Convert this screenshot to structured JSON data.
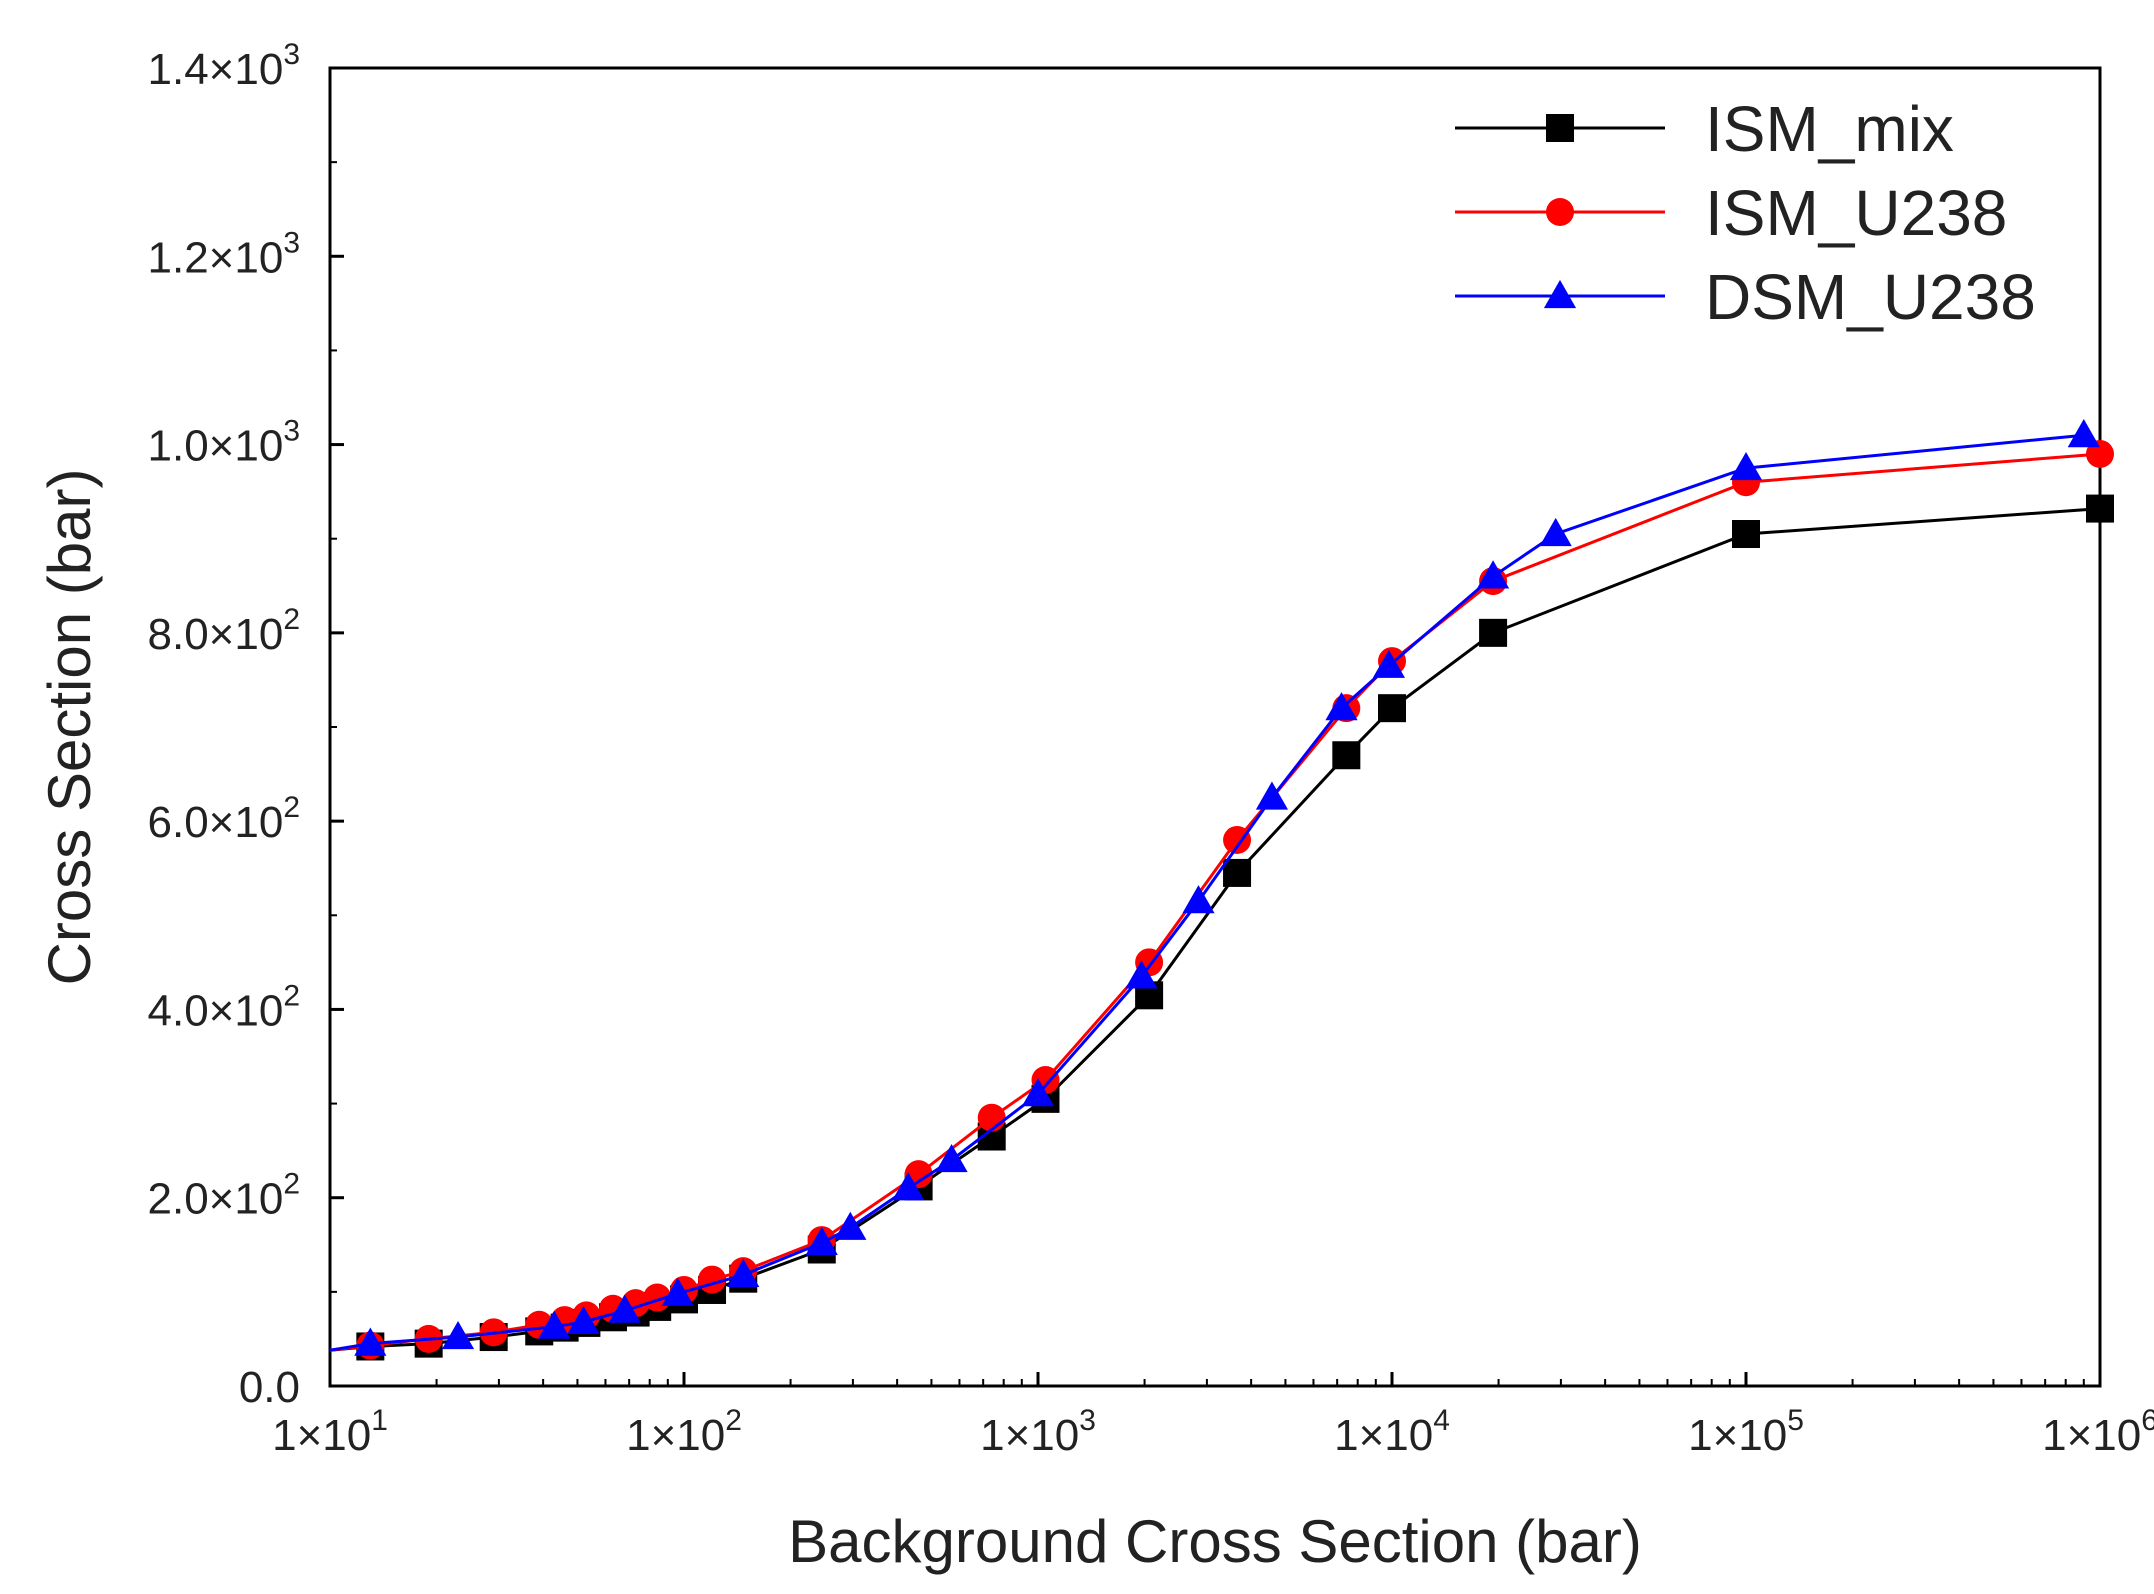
{
  "chart_data": {
    "type": "line",
    "title": "",
    "xlabel": "Background Cross Section (bar)",
    "ylabel": "Cross Section (bar)",
    "xscale": "log",
    "xlim": [
      10,
      1000000
    ],
    "ylim": [
      0,
      1400
    ],
    "grid": false,
    "legend_position": "top-right",
    "x_ticks": [
      {
        "value": 10,
        "mant": "1×10",
        "exp": "1"
      },
      {
        "value": 100,
        "mant": "1×10",
        "exp": "2"
      },
      {
        "value": 1000,
        "mant": "1×10",
        "exp": "3"
      },
      {
        "value": 10000,
        "mant": "1×10",
        "exp": "4"
      },
      {
        "value": 100000,
        "mant": "1×10",
        "exp": "5"
      },
      {
        "value": 1000000,
        "mant": "1×10",
        "exp": "6"
      }
    ],
    "y_ticks": [
      {
        "value": 0,
        "mant": "0.0",
        "exp": ""
      },
      {
        "value": 200,
        "mant": "2.0×10",
        "exp": "2"
      },
      {
        "value": 400,
        "mant": "4.0×10",
        "exp": "2"
      },
      {
        "value": 600,
        "mant": "6.0×10",
        "exp": "2"
      },
      {
        "value": 800,
        "mant": "8.0×10",
        "exp": "2"
      },
      {
        "value": 1000,
        "mant": "1.0×10",
        "exp": "3"
      },
      {
        "value": 1200,
        "mant": "1.2×10",
        "exp": "3"
      },
      {
        "value": 1400,
        "mant": "1.4×10",
        "exp": "3"
      }
    ],
    "series": [
      {
        "name": "ISM_mix",
        "color": "#000000",
        "marker": "square",
        "x": [
          10,
          13,
          19,
          29,
          39,
          46,
          53,
          63,
          73,
          84,
          100,
          120,
          147,
          245,
          460,
          740,
          1050,
          2060,
          3650,
          7430,
          10000,
          19300,
          100000,
          1000000
        ],
        "y": [
          38,
          42,
          45,
          52,
          58,
          62,
          67,
          73,
          78,
          84,
          92,
          102,
          114,
          145,
          212,
          265,
          305,
          415,
          545,
          670,
          720,
          800,
          905,
          932
        ]
      },
      {
        "name": "ISM_U238",
        "color": "#ff0000",
        "marker": "circle",
        "x": [
          10,
          13,
          19,
          29,
          39,
          46,
          53,
          63,
          73,
          84,
          100,
          120,
          147,
          245,
          460,
          740,
          1050,
          2060,
          3650,
          7430,
          10000,
          19300,
          100000,
          1000000
        ],
        "y": [
          38,
          43,
          50,
          57,
          65,
          70,
          75,
          82,
          88,
          94,
          102,
          113,
          122,
          155,
          225,
          285,
          325,
          450,
          580,
          720,
          770,
          855,
          960,
          990
        ]
      },
      {
        "name": "DSM_U238",
        "color": "#0000ff",
        "marker": "triangle",
        "x": [
          10,
          13,
          23,
          43,
          52,
          68,
          96,
          147,
          245,
          295,
          430,
          570,
          1000,
          1960,
          2840,
          4580,
          7200,
          9800,
          19300,
          29000,
          100000,
          900000
        ],
        "y": [
          38,
          45,
          52,
          63,
          68,
          80,
          98,
          118,
          152,
          168,
          210,
          240,
          310,
          435,
          515,
          625,
          720,
          765,
          860,
          905,
          975,
          1010
        ]
      }
    ]
  }
}
